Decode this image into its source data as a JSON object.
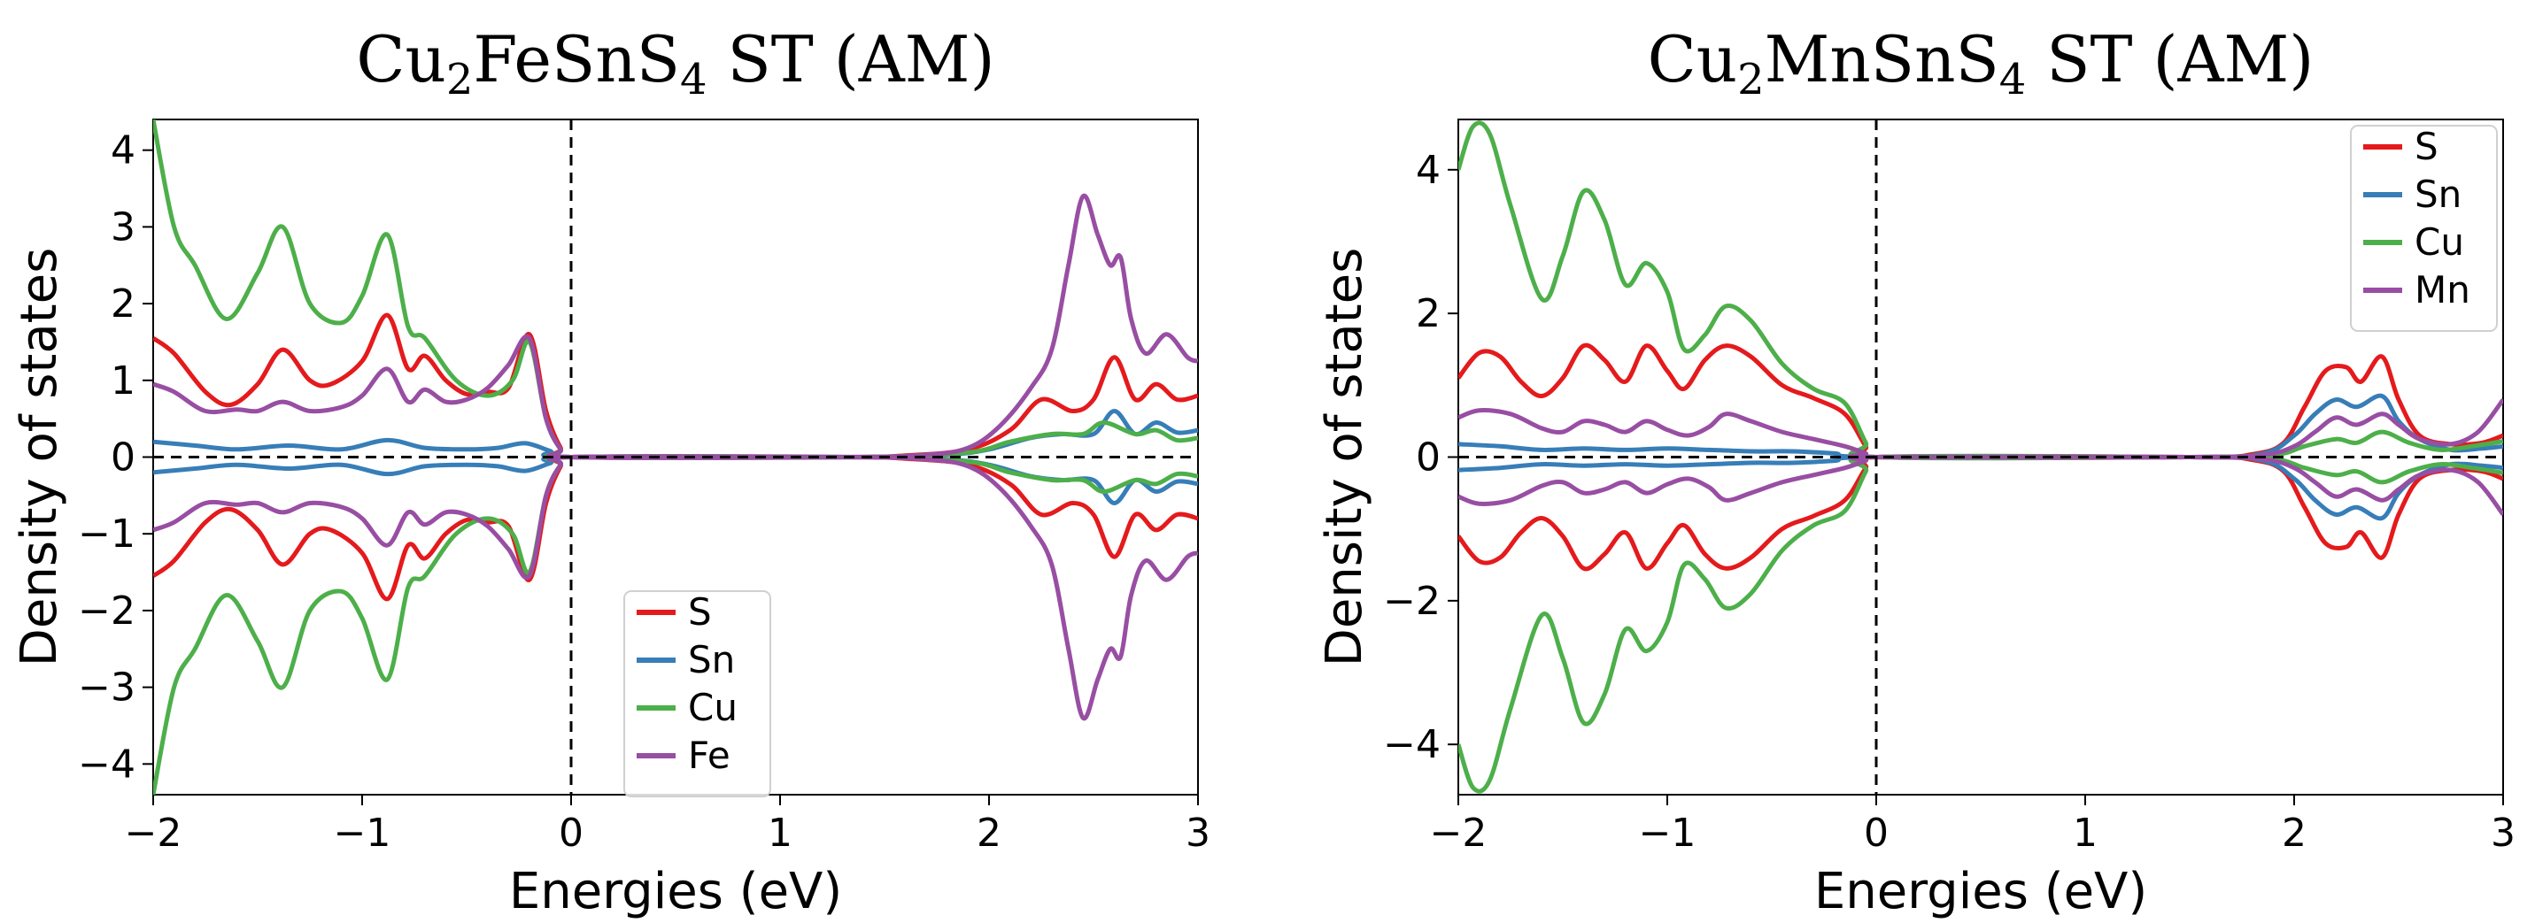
{
  "chart_data": [
    {
      "type": "line",
      "title_parts": [
        "Cu",
        "2",
        "FeSnS",
        "4",
        " ST (AM)"
      ],
      "xlabel": "Energies (eV)",
      "ylabel": "Density of states",
      "xlim": [
        -2,
        3
      ],
      "ylim": [
        -4.4,
        4.4
      ],
      "xticks": [
        -2,
        -1,
        0,
        1,
        2,
        3
      ],
      "xtick_labels": [
        "−2",
        "−1",
        "0",
        "1",
        "2",
        "3"
      ],
      "yticks": [
        -4,
        -3,
        -2,
        -1,
        0,
        1,
        2,
        3,
        4
      ],
      "ytick_labels": [
        "−4",
        "−3",
        "−2",
        "−1",
        "0",
        "1",
        "2",
        "3",
        "4"
      ],
      "fermi_level": 0,
      "legend_position": "lower-center",
      "mirror_negative": true,
      "series": [
        {
          "name": "S",
          "color": "#e41a1c",
          "points": [
            [
              -2,
              1.55
            ],
            [
              -1.9,
              1.35
            ],
            [
              -1.75,
              0.85
            ],
            [
              -1.63,
              0.68
            ],
            [
              -1.5,
              0.95
            ],
            [
              -1.38,
              1.4
            ],
            [
              -1.25,
              1.0
            ],
            [
              -1.15,
              0.95
            ],
            [
              -1.0,
              1.25
            ],
            [
              -0.88,
              1.85
            ],
            [
              -0.78,
              1.15
            ],
            [
              -0.7,
              1.32
            ],
            [
              -0.6,
              1.0
            ],
            [
              -0.5,
              0.82
            ],
            [
              -0.4,
              0.85
            ],
            [
              -0.3,
              0.9
            ],
            [
              -0.2,
              1.6
            ],
            [
              -0.12,
              0.6
            ],
            [
              -0.05,
              0.12
            ],
            [
              0,
              0
            ],
            [
              1.3,
              0
            ],
            [
              1.6,
              0.02
            ],
            [
              1.9,
              0.1
            ],
            [
              2.1,
              0.35
            ],
            [
              2.25,
              0.75
            ],
            [
              2.4,
              0.6
            ],
            [
              2.5,
              0.75
            ],
            [
              2.6,
              1.3
            ],
            [
              2.7,
              0.75
            ],
            [
              2.8,
              0.95
            ],
            [
              2.9,
              0.75
            ],
            [
              3.0,
              0.8
            ]
          ]
        },
        {
          "name": "Sn",
          "color": "#377eb8",
          "points": [
            [
              -2,
              0.2
            ],
            [
              -1.8,
              0.15
            ],
            [
              -1.6,
              0.1
            ],
            [
              -1.35,
              0.15
            ],
            [
              -1.1,
              0.1
            ],
            [
              -0.88,
              0.22
            ],
            [
              -0.7,
              0.12
            ],
            [
              -0.5,
              0.1
            ],
            [
              -0.35,
              0.12
            ],
            [
              -0.22,
              0.18
            ],
            [
              -0.1,
              0.08
            ],
            [
              0,
              0
            ],
            [
              1.4,
              0
            ],
            [
              1.8,
              0.03
            ],
            [
              2.0,
              0.1
            ],
            [
              2.2,
              0.25
            ],
            [
              2.35,
              0.3
            ],
            [
              2.5,
              0.3
            ],
            [
              2.6,
              0.6
            ],
            [
              2.7,
              0.3
            ],
            [
              2.8,
              0.45
            ],
            [
              2.9,
              0.32
            ],
            [
              3.0,
              0.35
            ]
          ]
        },
        {
          "name": "Cu",
          "color": "#4daf4a",
          "points": [
            [
              -2,
              4.4
            ],
            [
              -1.9,
              3.0
            ],
            [
              -1.8,
              2.5
            ],
            [
              -1.65,
              1.8
            ],
            [
              -1.5,
              2.4
            ],
            [
              -1.38,
              3.0
            ],
            [
              -1.25,
              2.0
            ],
            [
              -1.1,
              1.75
            ],
            [
              -1.0,
              2.1
            ],
            [
              -0.88,
              2.9
            ],
            [
              -0.78,
              1.7
            ],
            [
              -0.7,
              1.55
            ],
            [
              -0.55,
              1.0
            ],
            [
              -0.4,
              0.8
            ],
            [
              -0.28,
              1.0
            ],
            [
              -0.2,
              1.5
            ],
            [
              -0.12,
              0.5
            ],
            [
              -0.05,
              0.1
            ],
            [
              0,
              0
            ],
            [
              1.4,
              0
            ],
            [
              1.9,
              0.06
            ],
            [
              2.1,
              0.2
            ],
            [
              2.3,
              0.3
            ],
            [
              2.45,
              0.3
            ],
            [
              2.55,
              0.45
            ],
            [
              2.7,
              0.3
            ],
            [
              2.8,
              0.35
            ],
            [
              2.9,
              0.22
            ],
            [
              3.0,
              0.25
            ]
          ]
        },
        {
          "name": "Fe",
          "color": "#984ea3",
          "points": [
            [
              -2,
              0.95
            ],
            [
              -1.9,
              0.85
            ],
            [
              -1.75,
              0.6
            ],
            [
              -1.6,
              0.62
            ],
            [
              -1.5,
              0.6
            ],
            [
              -1.38,
              0.72
            ],
            [
              -1.25,
              0.6
            ],
            [
              -1.1,
              0.65
            ],
            [
              -1.0,
              0.8
            ],
            [
              -0.88,
              1.15
            ],
            [
              -0.78,
              0.72
            ],
            [
              -0.7,
              0.88
            ],
            [
              -0.6,
              0.72
            ],
            [
              -0.5,
              0.75
            ],
            [
              -0.4,
              0.9
            ],
            [
              -0.3,
              1.2
            ],
            [
              -0.2,
              1.55
            ],
            [
              -0.12,
              0.5
            ],
            [
              -0.05,
              0.1
            ],
            [
              0,
              0
            ],
            [
              1.3,
              0
            ],
            [
              1.7,
              0.03
            ],
            [
              1.9,
              0.12
            ],
            [
              2.05,
              0.4
            ],
            [
              2.2,
              0.9
            ],
            [
              2.3,
              1.4
            ],
            [
              2.38,
              2.5
            ],
            [
              2.45,
              3.4
            ],
            [
              2.52,
              2.9
            ],
            [
              2.58,
              2.5
            ],
            [
              2.63,
              2.6
            ],
            [
              2.68,
              1.8
            ],
            [
              2.75,
              1.35
            ],
            [
              2.85,
              1.6
            ],
            [
              2.95,
              1.3
            ],
            [
              3.0,
              1.25
            ]
          ]
        }
      ]
    },
    {
      "type": "line",
      "title_parts": [
        "Cu",
        "2",
        "MnSnS",
        "4",
        " ST (AM)"
      ],
      "xlabel": "Energies (eV)",
      "ylabel": "Density of states",
      "xlim": [
        -2,
        3
      ],
      "ylim": [
        -4.7,
        4.7
      ],
      "xticks": [
        -2,
        -1,
        0,
        1,
        2,
        3
      ],
      "xtick_labels": [
        "−2",
        "−1",
        "0",
        "1",
        "2",
        "3"
      ],
      "yticks": [
        -4,
        -2,
        0,
        2,
        4
      ],
      "ytick_labels": [
        "−4",
        "−2",
        "0",
        "2",
        "4"
      ],
      "fermi_level": 0,
      "legend_position": "top-right",
      "mirror_negative": true,
      "series": [
        {
          "name": "S",
          "color": "#e41a1c",
          "points": [
            [
              -2,
              1.1
            ],
            [
              -1.9,
              1.45
            ],
            [
              -1.8,
              1.4
            ],
            [
              -1.7,
              1.05
            ],
            [
              -1.6,
              0.85
            ],
            [
              -1.5,
              1.1
            ],
            [
              -1.4,
              1.55
            ],
            [
              -1.3,
              1.35
            ],
            [
              -1.2,
              1.05
            ],
            [
              -1.1,
              1.55
            ],
            [
              -1.0,
              1.2
            ],
            [
              -0.92,
              0.95
            ],
            [
              -0.82,
              1.35
            ],
            [
              -0.72,
              1.55
            ],
            [
              -0.6,
              1.4
            ],
            [
              -0.45,
              1.0
            ],
            [
              -0.3,
              0.82
            ],
            [
              -0.15,
              0.6
            ],
            [
              -0.05,
              0.15
            ],
            [
              0,
              0
            ],
            [
              1.5,
              0
            ],
            [
              1.8,
              0.04
            ],
            [
              1.95,
              0.2
            ],
            [
              2.05,
              0.7
            ],
            [
              2.15,
              1.2
            ],
            [
              2.25,
              1.25
            ],
            [
              2.32,
              1.05
            ],
            [
              2.42,
              1.4
            ],
            [
              2.5,
              0.8
            ],
            [
              2.6,
              0.3
            ],
            [
              2.75,
              0.18
            ],
            [
              2.9,
              0.2
            ],
            [
              3.0,
              0.3
            ]
          ]
        },
        {
          "name": "Sn",
          "color": "#377eb8",
          "points": [
            [
              -2,
              0.18
            ],
            [
              -1.8,
              0.15
            ],
            [
              -1.6,
              0.1
            ],
            [
              -1.4,
              0.12
            ],
            [
              -1.2,
              0.1
            ],
            [
              -1.0,
              0.12
            ],
            [
              -0.8,
              0.1
            ],
            [
              -0.6,
              0.08
            ],
            [
              -0.4,
              0.08
            ],
            [
              -0.2,
              0.05
            ],
            [
              0,
              0
            ],
            [
              1.5,
              0
            ],
            [
              1.85,
              0.05
            ],
            [
              2.0,
              0.3
            ],
            [
              2.1,
              0.6
            ],
            [
              2.2,
              0.8
            ],
            [
              2.3,
              0.7
            ],
            [
              2.42,
              0.85
            ],
            [
              2.5,
              0.5
            ],
            [
              2.6,
              0.25
            ],
            [
              2.75,
              0.1
            ],
            [
              2.9,
              0.12
            ],
            [
              3.0,
              0.15
            ]
          ]
        },
        {
          "name": "Cu",
          "color": "#4daf4a",
          "points": [
            [
              -2,
              4.0
            ],
            [
              -1.93,
              4.6
            ],
            [
              -1.85,
              4.5
            ],
            [
              -1.75,
              3.5
            ],
            [
              -1.6,
              2.2
            ],
            [
              -1.5,
              2.8
            ],
            [
              -1.4,
              3.7
            ],
            [
              -1.3,
              3.3
            ],
            [
              -1.2,
              2.4
            ],
            [
              -1.1,
              2.7
            ],
            [
              -1.0,
              2.3
            ],
            [
              -0.92,
              1.5
            ],
            [
              -0.82,
              1.7
            ],
            [
              -0.72,
              2.1
            ],
            [
              -0.6,
              1.9
            ],
            [
              -0.45,
              1.3
            ],
            [
              -0.3,
              0.95
            ],
            [
              -0.15,
              0.75
            ],
            [
              -0.05,
              0.2
            ],
            [
              0,
              0
            ],
            [
              1.5,
              0
            ],
            [
              1.9,
              0.03
            ],
            [
              2.05,
              0.15
            ],
            [
              2.2,
              0.25
            ],
            [
              2.3,
              0.2
            ],
            [
              2.42,
              0.35
            ],
            [
              2.55,
              0.2
            ],
            [
              2.7,
              0.1
            ],
            [
              2.85,
              0.15
            ],
            [
              3.0,
              0.22
            ]
          ]
        },
        {
          "name": "Mn",
          "color": "#984ea3",
          "points": [
            [
              -2,
              0.55
            ],
            [
              -1.9,
              0.65
            ],
            [
              -1.75,
              0.6
            ],
            [
              -1.6,
              0.4
            ],
            [
              -1.5,
              0.35
            ],
            [
              -1.4,
              0.5
            ],
            [
              -1.3,
              0.45
            ],
            [
              -1.2,
              0.35
            ],
            [
              -1.1,
              0.5
            ],
            [
              -1.0,
              0.38
            ],
            [
              -0.9,
              0.3
            ],
            [
              -0.8,
              0.42
            ],
            [
              -0.72,
              0.6
            ],
            [
              -0.6,
              0.5
            ],
            [
              -0.45,
              0.35
            ],
            [
              -0.3,
              0.25
            ],
            [
              -0.15,
              0.15
            ],
            [
              -0.05,
              0.05
            ],
            [
              0,
              0
            ],
            [
              1.5,
              0
            ],
            [
              1.85,
              0.03
            ],
            [
              2.0,
              0.15
            ],
            [
              2.1,
              0.35
            ],
            [
              2.2,
              0.55
            ],
            [
              2.3,
              0.45
            ],
            [
              2.42,
              0.6
            ],
            [
              2.5,
              0.45
            ],
            [
              2.6,
              0.25
            ],
            [
              2.75,
              0.18
            ],
            [
              2.88,
              0.35
            ],
            [
              3.0,
              0.8
            ]
          ]
        }
      ]
    }
  ]
}
